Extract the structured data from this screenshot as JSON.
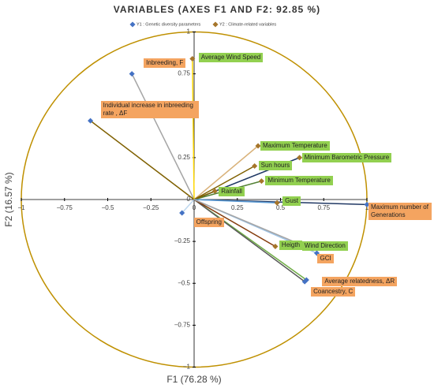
{
  "chart_data": {
    "type": "correlation-circle",
    "title": "VARIABLES (AXES F1 AND F2: 92.85 %)",
    "x_label": "F1 (76.28 %)",
    "y_label": "F2 (16.57 %)",
    "xlim": [
      -1,
      1
    ],
    "ylim": [
      -1,
      1
    ],
    "xticks": [
      {
        "value": -1,
        "label": "−1"
      },
      {
        "value": -0.75,
        "label": "−0.75"
      },
      {
        "value": -0.5,
        "label": "−0.5"
      },
      {
        "value": -0.25,
        "label": "−0.25"
      },
      0,
      0.25,
      0.5,
      0.75,
      1
    ],
    "yticks": [
      {
        "value": -1,
        "label": "−1"
      },
      {
        "value": -0.75,
        "label": "−0.75"
      },
      {
        "value": -0.5,
        "label": "−0.5"
      },
      {
        "value": -0.25,
        "label": "−0.25"
      },
      0,
      0.25,
      0.5,
      0.75,
      1
    ],
    "circle_color": "#bf9000",
    "series": [
      {
        "name": "Y1 : Genetic diversity parameters",
        "color": "#4472c4",
        "label_color": "#f4a460",
        "labels": [
          "Inbreeding, F",
          "Individual increase in inbreeding rate , ΔF",
          "Offspring",
          "Maximum number of Generations",
          "GCI",
          "Average relatedness, ΔR",
          "Coancestry, C"
        ],
        "x": [
          -0.36,
          -0.6,
          -0.07,
          1.0,
          0.71,
          0.65,
          0.64
        ],
        "y": [
          0.75,
          0.47,
          -0.08,
          -0.03,
          -0.32,
          -0.48,
          -0.49
        ],
        "line_colors": [
          "#a5a5a5",
          "#7f6000",
          "#bdd7ee",
          "#203864",
          "#9dc3e6",
          "#70ad47",
          "#595959"
        ]
      },
      {
        "name": "Y2 : Climate-related variables",
        "color": "#a5752a",
        "label_color": "#92d050",
        "labels": [
          "Average Wind Speed",
          "Maximum Temperature",
          "Minimum Barometric Pressure",
          "Sun hours",
          "Minimum Temperature",
          "Rainfall",
          "Gust",
          "Heigth",
          "Wind Direction"
        ],
        "x": [
          -0.01,
          0.37,
          0.61,
          0.35,
          0.39,
          0.12,
          0.48,
          0.47,
          0.62
        ],
        "y": [
          0.84,
          0.32,
          0.25,
          0.2,
          0.11,
          0.05,
          -0.02,
          -0.28,
          -0.27
        ],
        "line_colors": [
          "#ffd700",
          "#d9b27a",
          "#1f3864",
          "#806000",
          "#548235",
          "#7f6000",
          "#5b9bd5",
          "#843c0c",
          "#a5a5a5"
        ]
      }
    ]
  }
}
